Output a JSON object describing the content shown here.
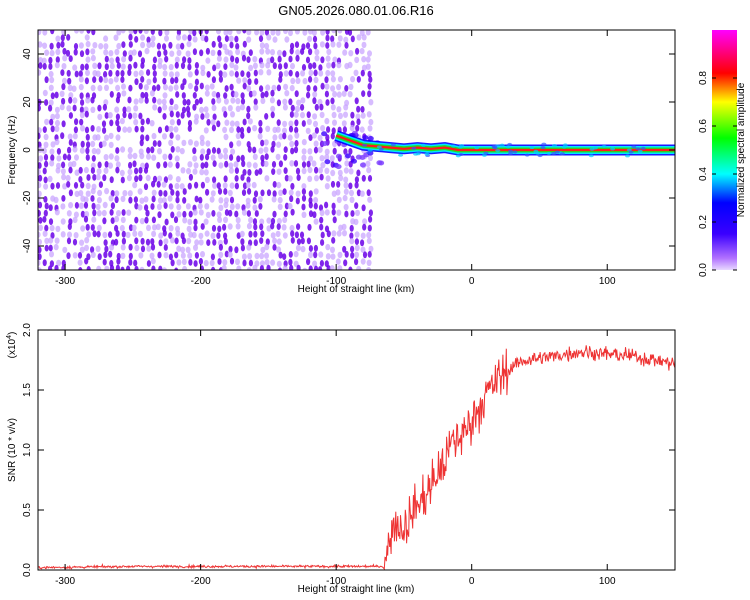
{
  "title": "GN05.2026.080.01.06.R16",
  "colors": {
    "dot_primary": "#6a00e8",
    "dot_light": "#c9a6ff",
    "snr_line": "#ee3333",
    "axis": "#000000",
    "background": "#ffffff"
  },
  "colorbar": {
    "label": "Normalized spectral amplitude",
    "ticks": [
      "0.0",
      "0.2",
      "0.4",
      "0.6",
      "0.8"
    ],
    "range": [
      0,
      1
    ],
    "colormap": "rainbow-lightviolet-to-red"
  },
  "chart_data": [
    {
      "type": "heatmap",
      "name": "spectrogram",
      "title": "GN05.2026.080.01.06.R16",
      "xlabel": "Height of straight line (km)",
      "ylabel": "Frequency (Hz)",
      "xlim": [
        -320,
        150
      ],
      "ylim": [
        -50,
        50
      ],
      "xticks": [
        -300,
        -200,
        -100,
        0,
        100
      ],
      "yticks": [
        -40,
        -20,
        0,
        20,
        40
      ],
      "xtick_labels": [
        "-300",
        "-200",
        "-100",
        "0",
        "100"
      ],
      "ytick_labels": [
        "-40",
        "-20",
        "0",
        "20",
        "40"
      ],
      "noise_region_x": [
        -320,
        -75
      ],
      "signal_line": {
        "x": [
          -100,
          -90,
          -80,
          -70,
          -60,
          -50,
          -40,
          -30,
          -20,
          -10,
          0,
          50,
          100,
          150
        ],
        "frequency": [
          6,
          4,
          2,
          1.5,
          1,
          0.5,
          1,
          0.5,
          1,
          0,
          0,
          0,
          0,
          0
        ],
        "amplitude": 1.0
      }
    },
    {
      "type": "line",
      "name": "snr",
      "xlabel": "Height of straight line (km)",
      "ylabel": "SNR (10 * v/v)",
      "scale_label": "(x10",
      "scale_exponent": "4",
      "xlim": [
        -320,
        150
      ],
      "ylim": [
        0,
        2.0
      ],
      "xticks": [
        -300,
        -200,
        -100,
        0,
        100
      ],
      "yticks": [
        0.0,
        0.5,
        1.0,
        1.5,
        2.0
      ],
      "xtick_labels": [
        "-300",
        "-200",
        "-100",
        "0",
        "100"
      ],
      "ytick_labels": [
        "0.0",
        "0.5",
        "1.0",
        "1.5",
        "2.0"
      ],
      "series": [
        {
          "x": [
            -320,
            -250,
            -150,
            -90,
            -65,
            -62,
            -58,
            -50,
            -45,
            -40,
            -35,
            -30,
            -25,
            -20,
            -15,
            -10,
            -5,
            0,
            10,
            20,
            30,
            40,
            60,
            80,
            100,
            120,
            140,
            150
          ],
          "y": [
            0.02,
            0.03,
            0.03,
            0.03,
            0.03,
            0.15,
            0.4,
            0.35,
            0.45,
            0.55,
            0.6,
            0.7,
            0.8,
            0.9,
            1.05,
            1.1,
            1.15,
            1.25,
            1.45,
            1.6,
            1.7,
            1.75,
            1.78,
            1.82,
            1.8,
            1.78,
            1.74,
            1.72
          ]
        }
      ]
    }
  ]
}
